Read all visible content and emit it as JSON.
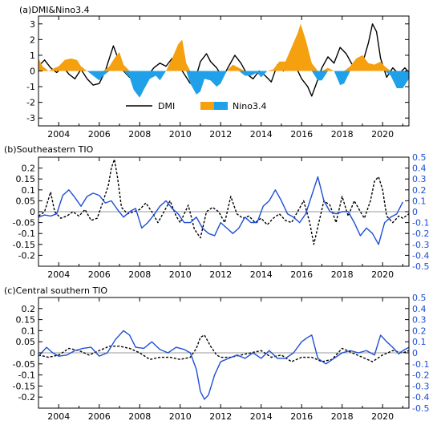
{
  "colors": {
    "positive": "#f5a00f",
    "negative": "#1fa0e8",
    "blue_line": "#1e4fd6",
    "black": "#000000",
    "zero": "#9a9a9a"
  },
  "legend": {
    "dmi": "DMI",
    "nino": "Nino3.4"
  },
  "chart_data": [
    {
      "type": "line",
      "title": "(a)DMI&Nino3.4",
      "xlabel": "",
      "ylabel": "",
      "xlim": [
        2003.0,
        2021.3
      ],
      "ylim": [
        -3.5,
        3.5
      ],
      "xticks": [
        2004,
        2006,
        2008,
        2010,
        2012,
        2014,
        2016,
        2018,
        2020
      ],
      "xtick_labels": [
        "2004",
        "2006",
        "2008",
        "2010",
        "2012",
        "2014",
        "2016",
        "2018",
        "2020"
      ],
      "yticks": [
        -3,
        -2,
        -1,
        0,
        1,
        2,
        3
      ],
      "ytick_labels": [
        "-3",
        "-2",
        "-1",
        "0",
        "1",
        "2",
        "3"
      ],
      "series": [
        {
          "name": "DMI",
          "style": "solid",
          "color": "#000000",
          "x": [
            2003.0,
            2003.3,
            2003.6,
            2003.9,
            2004.2,
            2004.5,
            2004.8,
            2005.1,
            2005.4,
            2005.7,
            2006.0,
            2006.3,
            2006.5,
            2006.7,
            2006.9,
            2007.2,
            2007.5,
            2007.8,
            2008.1,
            2008.4,
            2008.7,
            2009.0,
            2009.3,
            2009.6,
            2009.9,
            2010.2,
            2010.5,
            2010.8,
            2011.0,
            2011.3,
            2011.5,
            2011.8,
            2012.1,
            2012.4,
            2012.7,
            2013.0,
            2013.3,
            2013.6,
            2013.9,
            2014.2,
            2014.5,
            2014.8,
            2015.1,
            2015.4,
            2015.7,
            2016.0,
            2016.3,
            2016.5,
            2016.7,
            2017.0,
            2017.3,
            2017.6,
            2017.9,
            2018.2,
            2018.5,
            2018.8,
            2019.1,
            2019.3,
            2019.5,
            2019.7,
            2019.9,
            2020.2,
            2020.5,
            2020.8,
            2021.1,
            2021.3
          ],
          "y": [
            0.3,
            0.7,
            0.2,
            -0.1,
            0.3,
            -0.2,
            -0.5,
            0.1,
            -0.5,
            -0.9,
            -0.8,
            0.0,
            0.8,
            1.6,
            0.9,
            0.0,
            -0.4,
            -0.2,
            -0.5,
            -0.3,
            0.2,
            0.5,
            0.3,
            0.8,
            0.4,
            -0.2,
            -0.8,
            -0.3,
            0.6,
            1.1,
            0.6,
            0.2,
            -0.4,
            0.3,
            1.0,
            0.5,
            -0.2,
            -0.5,
            0.0,
            -0.3,
            -0.7,
            0.4,
            0.0,
            0.9,
            0.3,
            -0.5,
            -1.0,
            -1.6,
            -0.9,
            0.2,
            0.9,
            0.5,
            1.5,
            1.1,
            0.4,
            0.3,
            0.9,
            1.8,
            3.0,
            2.5,
            0.8,
            -0.4,
            0.2,
            -0.2,
            0.2,
            -0.1
          ]
        },
        {
          "name": "Nino3.4",
          "style": "filled",
          "color_positive": "#f5a00f",
          "color_negative": "#1fa0e8",
          "x": [
            2003.0,
            2003.2,
            2003.5,
            2003.8,
            2004.0,
            2004.3,
            2004.6,
            2004.9,
            2005.1,
            2005.4,
            2005.7,
            2006.0,
            2006.2,
            2006.5,
            2006.8,
            2007.0,
            2007.2,
            2007.5,
            2007.7,
            2008.0,
            2008.2,
            2008.5,
            2008.8,
            2009.0,
            2009.3,
            2009.6,
            2009.9,
            2010.1,
            2010.3,
            2010.5,
            2010.8,
            2011.0,
            2011.2,
            2011.5,
            2011.8,
            2012.0,
            2012.3,
            2012.6,
            2012.9,
            2013.2,
            2013.5,
            2013.8,
            2014.0,
            2014.3,
            2014.6,
            2014.9,
            2015.2,
            2015.5,
            2015.8,
            2015.95,
            2016.2,
            2016.5,
            2016.8,
            2017.0,
            2017.3,
            2017.6,
            2017.9,
            2018.1,
            2018.4,
            2018.7,
            2019.0,
            2019.3,
            2019.6,
            2019.9,
            2020.1,
            2020.4,
            2020.7,
            2021.0,
            2021.3
          ],
          "y": [
            0.8,
            0.3,
            0.0,
            0.2,
            0.3,
            0.7,
            0.8,
            0.7,
            0.3,
            0.0,
            -0.3,
            -0.6,
            -0.3,
            0.3,
            0.9,
            1.2,
            0.4,
            -0.4,
            -1.2,
            -1.7,
            -1.2,
            -0.5,
            -0.3,
            -0.6,
            0.0,
            0.8,
            1.7,
            2.0,
            0.5,
            -0.8,
            -1.5,
            -1.3,
            -0.5,
            -0.6,
            -1.0,
            -0.8,
            0.0,
            0.4,
            0.2,
            -0.3,
            -0.3,
            -0.1,
            -0.4,
            0.0,
            0.1,
            0.6,
            0.6,
            1.5,
            2.4,
            3.0,
            2.0,
            0.5,
            -0.6,
            -0.6,
            0.2,
            0.0,
            -0.9,
            -0.8,
            0.3,
            0.8,
            1.0,
            0.5,
            0.4,
            0.6,
            0.3,
            -0.3,
            -1.1,
            -1.1,
            -0.5
          ]
        }
      ]
    },
    {
      "type": "line",
      "title": "(b)Southeastern TIO",
      "xlabel": "",
      "ylabel": "",
      "xlim": [
        2003.0,
        2021.3
      ],
      "ylim": [
        -0.25,
        0.25
      ],
      "ylim_right": [
        -0.5,
        0.5
      ],
      "xticks": [
        2004,
        2006,
        2008,
        2010,
        2012,
        2014,
        2016,
        2018,
        2020
      ],
      "xtick_labels": [
        "2004",
        "2006",
        "2008",
        "2010",
        "2012",
        "2014",
        "2016",
        "2018",
        "2020"
      ],
      "yticks": [
        -0.2,
        -0.15,
        -0.1,
        -0.05,
        0,
        0.05,
        0.1,
        0.15,
        0.2
      ],
      "ytick_labels": [
        "-0.2",
        "-0.15",
        "-0.1",
        "-0.05",
        "0",
        "0.05",
        "0.1",
        "0.15",
        "0.2"
      ],
      "yticks_right": [
        -0.5,
        -0.4,
        -0.3,
        -0.2,
        -0.1,
        0,
        0.1,
        0.2,
        0.3,
        0.4,
        0.5
      ],
      "ytick_labels_right": [
        "-0.5",
        "-0.4",
        "-0.3",
        "-0.2",
        "-0.1",
        "0",
        "0.1",
        "0.2",
        "0.3",
        "0.4",
        "0.5"
      ],
      "series": [
        {
          "style": "dashed",
          "color": "#000000",
          "axis": "left",
          "x": [
            2003.0,
            2003.3,
            2003.6,
            2003.8,
            2004.1,
            2004.4,
            2004.7,
            2005.0,
            2005.3,
            2005.6,
            2005.9,
            2006.2,
            2006.45,
            2006.6,
            2006.75,
            2006.9,
            2007.1,
            2007.4,
            2007.7,
            2008.0,
            2008.3,
            2008.6,
            2008.9,
            2009.2,
            2009.5,
            2009.8,
            2010.0,
            2010.2,
            2010.4,
            2010.7,
            2011.0,
            2011.3,
            2011.6,
            2011.9,
            2012.2,
            2012.5,
            2012.8,
            2013.1,
            2013.4,
            2013.7,
            2014.0,
            2014.3,
            2014.6,
            2014.9,
            2015.2,
            2015.5,
            2015.8,
            2016.1,
            2016.4,
            2016.6,
            2016.8,
            2017.1,
            2017.4,
            2017.7,
            2018.0,
            2018.3,
            2018.6,
            2018.9,
            2019.1,
            2019.4,
            2019.6,
            2019.8,
            2020.0,
            2020.2,
            2020.5,
            2020.8,
            2021.0,
            2021.3
          ],
          "y": [
            -0.02,
            0.0,
            0.09,
            0.0,
            -0.03,
            -0.02,
            0.0,
            -0.02,
            0.01,
            -0.04,
            -0.03,
            0.05,
            0.12,
            0.2,
            0.24,
            0.16,
            0.02,
            -0.01,
            0.0,
            0.01,
            0.04,
            0.0,
            -0.05,
            0.0,
            0.05,
            -0.02,
            -0.05,
            -0.01,
            0.03,
            -0.08,
            -0.12,
            0.0,
            0.02,
            0.0,
            -0.05,
            0.07,
            -0.01,
            -0.03,
            -0.02,
            -0.05,
            -0.03,
            -0.06,
            -0.03,
            -0.01,
            -0.04,
            -0.05,
            0.0,
            0.05,
            -0.05,
            -0.15,
            -0.07,
            0.05,
            0.03,
            -0.05,
            0.07,
            -0.02,
            0.05,
            0.0,
            -0.03,
            0.05,
            0.14,
            0.16,
            0.1,
            -0.02,
            -0.05,
            -0.02,
            -0.03,
            -0.01
          ]
        },
        {
          "style": "solid",
          "color": "#1e4fd6",
          "axis": "right",
          "x": [
            2003.0,
            2003.3,
            2003.6,
            2003.9,
            2004.2,
            2004.5,
            2004.8,
            2005.1,
            2005.4,
            2005.7,
            2006.0,
            2006.3,
            2006.6,
            2006.9,
            2007.2,
            2007.5,
            2007.8,
            2008.1,
            2008.4,
            2008.7,
            2009.0,
            2009.3,
            2009.6,
            2009.9,
            2010.2,
            2010.5,
            2010.8,
            2011.1,
            2011.4,
            2011.7,
            2012.0,
            2012.3,
            2012.6,
            2012.9,
            2013.2,
            2013.5,
            2013.8,
            2014.1,
            2014.4,
            2014.7,
            2015.0,
            2015.3,
            2015.6,
            2015.9,
            2016.2,
            2016.5,
            2016.8,
            2017.1,
            2017.4,
            2017.7,
            2018.0,
            2018.3,
            2018.6,
            2018.9,
            2019.2,
            2019.5,
            2019.8,
            2020.1,
            2020.4,
            2020.7,
            2021.0
          ],
          "y": [
            -0.05,
            -0.03,
            -0.04,
            -0.02,
            0.15,
            0.2,
            0.13,
            0.05,
            0.14,
            0.17,
            0.15,
            0.08,
            0.1,
            0.02,
            -0.05,
            0.0,
            0.03,
            -0.15,
            -0.1,
            -0.03,
            0.05,
            0.1,
            0.03,
            -0.02,
            -0.1,
            -0.1,
            -0.05,
            -0.15,
            -0.2,
            -0.22,
            -0.1,
            -0.15,
            -0.2,
            -0.15,
            -0.05,
            -0.1,
            -0.1,
            0.05,
            0.1,
            0.2,
            0.1,
            -0.02,
            -0.05,
            -0.1,
            -0.02,
            0.15,
            0.32,
            0.1,
            0.0,
            -0.02,
            0.0,
            0.0,
            -0.1,
            -0.22,
            -0.15,
            -0.2,
            -0.3,
            -0.1,
            -0.05,
            -0.02,
            0.09
          ]
        }
      ]
    },
    {
      "type": "line",
      "title": "(c)Central southern TIO",
      "xlabel": "",
      "ylabel": "",
      "xlim": [
        2003.0,
        2021.3
      ],
      "ylim": [
        -0.25,
        0.25
      ],
      "ylim_right": [
        -0.5,
        0.5
      ],
      "xticks": [
        2004,
        2006,
        2008,
        2010,
        2012,
        2014,
        2016,
        2018,
        2020
      ],
      "xtick_labels": [
        "2004",
        "2006",
        "2008",
        "2010",
        "2012",
        "2014",
        "2016",
        "2018",
        "2020"
      ],
      "yticks": [
        -0.2,
        -0.15,
        -0.1,
        -0.05,
        0,
        0.05,
        0.1,
        0.15,
        0.2
      ],
      "ytick_labels": [
        "-0.2",
        "-0.15",
        "-0.1",
        "-0.05",
        "0",
        "0.05",
        "0.1",
        "0.15",
        "0.2"
      ],
      "yticks_right": [
        -0.5,
        -0.4,
        -0.3,
        -0.2,
        -0.1,
        0,
        0.1,
        0.2,
        0.3,
        0.4,
        0.5
      ],
      "ytick_labels_right": [
        "-0.5",
        "-0.4",
        "-0.3",
        "-0.2",
        "-0.1",
        "0",
        "0.1",
        "0.2",
        "0.3",
        "0.4",
        "0.5"
      ],
      "series": [
        {
          "style": "dashed",
          "color": "#000000",
          "axis": "left",
          "x": [
            2003.0,
            2003.5,
            2004.0,
            2004.5,
            2005.0,
            2005.5,
            2006.0,
            2006.5,
            2007.0,
            2007.5,
            2008.0,
            2008.5,
            2009.0,
            2009.5,
            2010.0,
            2010.5,
            2010.8,
            2011.0,
            2011.2,
            2011.5,
            2011.8,
            2012.0,
            2012.5,
            2013.0,
            2013.5,
            2014.0,
            2014.5,
            2015.0,
            2015.5,
            2016.0,
            2016.5,
            2017.0,
            2017.5,
            2018.0,
            2018.5,
            2019.0,
            2019.5,
            2020.0,
            2020.5,
            2021.0,
            2021.3
          ],
          "y": [
            -0.01,
            -0.02,
            -0.01,
            0.02,
            0.01,
            -0.01,
            0.01,
            0.03,
            0.03,
            0.02,
            0.0,
            -0.03,
            -0.02,
            -0.02,
            -0.03,
            -0.02,
            0.02,
            0.07,
            0.08,
            0.03,
            -0.01,
            -0.02,
            -0.02,
            -0.01,
            0.0,
            0.01,
            -0.02,
            -0.01,
            -0.04,
            -0.02,
            -0.02,
            -0.04,
            -0.03,
            0.02,
            0.0,
            -0.02,
            -0.04,
            -0.01,
            0.01,
            0.0,
            0.01
          ]
        },
        {
          "style": "solid",
          "color": "#1e4fd6",
          "axis": "right",
          "x": [
            2003.0,
            2003.4,
            2003.7,
            2004.0,
            2004.4,
            2004.8,
            2005.2,
            2005.6,
            2006.0,
            2006.4,
            2006.8,
            2007.2,
            2007.5,
            2007.8,
            2008.2,
            2008.6,
            2009.0,
            2009.4,
            2009.8,
            2010.2,
            2010.5,
            2010.8,
            2011.0,
            2011.2,
            2011.4,
            2011.7,
            2012.0,
            2012.4,
            2012.8,
            2013.2,
            2013.6,
            2014.0,
            2014.4,
            2014.8,
            2015.2,
            2015.6,
            2016.0,
            2016.3,
            2016.5,
            2016.8,
            2017.2,
            2017.6,
            2018.0,
            2018.4,
            2018.8,
            2019.2,
            2019.6,
            2019.9,
            2020.2,
            2020.5,
            2020.8,
            2021.0,
            2021.3
          ],
          "y": [
            -0.03,
            0.05,
            0.0,
            -0.03,
            -0.02,
            0.02,
            0.04,
            0.05,
            -0.03,
            0.0,
            0.12,
            0.2,
            0.16,
            0.05,
            0.04,
            0.1,
            0.03,
            0.0,
            0.05,
            0.03,
            0.0,
            -0.15,
            -0.35,
            -0.42,
            -0.38,
            -0.2,
            -0.08,
            -0.05,
            -0.02,
            -0.05,
            0.0,
            -0.05,
            0.02,
            -0.05,
            -0.05,
            0.0,
            0.1,
            0.14,
            0.16,
            -0.05,
            -0.1,
            -0.05,
            0.0,
            0.02,
            0.0,
            0.02,
            -0.02,
            0.16,
            0.1,
            0.05,
            -0.01,
            0.02,
            0.05
          ]
        }
      ]
    }
  ]
}
